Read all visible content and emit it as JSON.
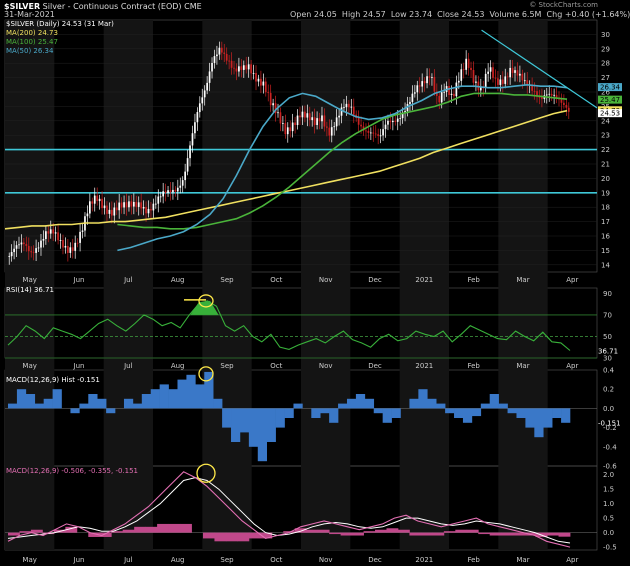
{
  "header": {
    "symbol": "$SILVER",
    "name": "Silver - Continuous Contract (EOD)",
    "exchange": "CME",
    "date": "31-Mar-2021",
    "open_label": "Open",
    "open": "24.05",
    "high_label": "High",
    "high": "24.57",
    "low_label": "Low",
    "low": "23.74",
    "close_label": "Close",
    "close": "24.53",
    "volume_label": "Volume",
    "volume": "6.5M",
    "chg_label": "Chg",
    "chg": "+0.40 (+1.64%)",
    "credit": "© StockCharts.com"
  },
  "colors": {
    "bg": "#000000",
    "up": "#ffffff",
    "down": "#cc2222",
    "ma200": "#f0e060",
    "ma100": "#4ab43a",
    "ma50": "#4aa8c8",
    "hline": "#3fc8d8",
    "rsi": "#38b03a",
    "macd_hist": "#3a78c8",
    "macd_line": "#e36fb3",
    "signal": "#ffffff",
    "histogram2": "#c0488a",
    "annot": "#ffe94a",
    "trend": "#3fc8d8"
  },
  "legend": {
    "price": "$SILVER (Daily) 24.53 (31 Mar)",
    "ma200": "MA(200) 24.73",
    "ma100": "MA(100) 25.47",
    "ma50": "MA(50) 26.34"
  },
  "panels": {
    "rsi_label": "RSI(14) 36.71",
    "macd_hist_label": "MACD(12,26,9) Hist -0.151",
    "macd_label_name": "MACD(12,26,9)",
    "macd_label_vals": "-0.506, -0.355, -0.151"
  },
  "chart_data": [
    {
      "type": "candlestick",
      "title": "$SILVER Silver - Continuous Contract (EOD) CME",
      "x_labels": [
        "May",
        "Jun",
        "Jul",
        "Aug",
        "Sep",
        "Oct",
        "Nov",
        "Dec",
        "2021",
        "Feb",
        "Mar",
        "Apr"
      ],
      "ylim": [
        13.5,
        31
      ],
      "y_ticks": [
        14,
        15,
        16,
        17,
        18,
        19,
        20,
        21,
        22,
        23,
        24,
        25,
        26,
        27,
        28,
        29,
        30
      ],
      "last_close": 24.53,
      "close_path": [
        14.6,
        15.0,
        15.3,
        15.0,
        15.6,
        16.2,
        16.0,
        15.4,
        15.2,
        15.6,
        16.4,
        17.8,
        18.5,
        18.2,
        17.9,
        18.1,
        17.8,
        18.0,
        18.4,
        18.0,
        18.2,
        18.6,
        18.9,
        19.4,
        20.3,
        22.6,
        24.5,
        26.0,
        28.5,
        29.4,
        28.2,
        27.1,
        27.5,
        28.0,
        27.2,
        26.5,
        24.9,
        24.2,
        23.5,
        24.0,
        24.4,
        24.0,
        23.7,
        24.5,
        23.4,
        24.0,
        24.7,
        24.8,
        24.1,
        23.6,
        23.1,
        22.5,
        23.8,
        24.2,
        24.7,
        25.2,
        25.9,
        26.5,
        27.5,
        25.6,
        26.3,
        25.2,
        27.0,
        28.5,
        27.0,
        26.0,
        27.4,
        26.5,
        27.0,
        27.9,
        27.2,
        26.3,
        26.0,
        25.8,
        26.2,
        25.7,
        24.9,
        24.5
      ],
      "overlays": [
        {
          "name": "MA(200)",
          "value": "24.73",
          "path": [
            16.5,
            16.6,
            16.7,
            16.7,
            16.8,
            16.8,
            16.9,
            16.9,
            17.0,
            17.0,
            17.1,
            17.2,
            17.3,
            17.5,
            17.7,
            17.9,
            18.1,
            18.3,
            18.5,
            18.7,
            18.9,
            19.1,
            19.3,
            19.5,
            19.7,
            19.9,
            20.1,
            20.3,
            20.5,
            20.8,
            21.1,
            21.4,
            21.8,
            22.1,
            22.4,
            22.7,
            23.0,
            23.3,
            23.6,
            23.9,
            24.2,
            24.5,
            24.7
          ]
        },
        {
          "name": "MA(100)",
          "value": "25.47",
          "path": [
            16.8,
            16.7,
            16.6,
            16.6,
            16.5,
            16.5,
            16.6,
            16.8,
            17.0,
            17.2,
            17.6,
            18.1,
            18.7,
            19.4,
            20.2,
            21.0,
            21.8,
            22.5,
            23.1,
            23.6,
            24.1,
            24.4,
            24.6,
            24.8,
            25.0,
            25.3,
            25.7,
            25.9,
            25.9,
            25.9,
            25.8,
            25.8,
            25.7,
            25.6,
            25.5
          ]
        },
        {
          "name": "MA(50)",
          "value": "26.34",
          "path": [
            15.0,
            15.2,
            15.5,
            15.8,
            16.0,
            16.3,
            16.8,
            17.5,
            18.6,
            20.2,
            22.0,
            23.6,
            24.8,
            25.6,
            25.9,
            25.7,
            25.2,
            24.7,
            24.3,
            24.1,
            24.2,
            24.5,
            25.0,
            25.4,
            25.9,
            26.2,
            26.4,
            26.4,
            26.3,
            26.3,
            26.4,
            26.5,
            26.4,
            26.4,
            26.3
          ]
        }
      ],
      "horizontal_lines": [
        22.0,
        19.0
      ],
      "trendline": {
        "from": 30.3,
        "to": 24.9
      }
    },
    {
      "type": "line",
      "name": "RSI(14)",
      "value": "36.71",
      "ylim": [
        30,
        95
      ],
      "y_ticks": [
        90,
        70,
        50,
        30
      ],
      "ref_lines": [
        70,
        50,
        30
      ],
      "path": [
        42,
        50,
        60,
        55,
        48,
        58,
        55,
        52,
        48,
        55,
        62,
        66,
        60,
        55,
        62,
        70,
        66,
        60,
        63,
        58,
        70,
        80,
        83,
        78,
        60,
        55,
        60,
        50,
        45,
        52,
        40,
        38,
        42,
        45,
        48,
        44,
        50,
        55,
        47,
        44,
        40,
        48,
        52,
        46,
        48,
        55,
        52,
        50,
        55,
        45,
        52,
        60,
        56,
        52,
        48,
        47,
        55,
        50,
        46,
        54,
        45,
        44,
        37
      ]
    },
    {
      "type": "bar",
      "name": "MACD(12,26,9) Hist",
      "value": "-0.151",
      "ylim": [
        -0.6,
        0.4
      ],
      "y_ticks": [
        0.4,
        0.2,
        0.0,
        -0.2,
        -0.4,
        -0.6
      ],
      "values": [
        0.05,
        0.2,
        0.15,
        0.05,
        0.1,
        0.2,
        0.0,
        -0.05,
        0.05,
        0.15,
        0.1,
        -0.05,
        0.0,
        0.1,
        0.05,
        0.15,
        0.2,
        0.25,
        0.2,
        0.3,
        0.35,
        0.25,
        0.38,
        0.1,
        -0.2,
        -0.35,
        -0.25,
        -0.4,
        -0.55,
        -0.35,
        -0.2,
        -0.1,
        0.05,
        0.0,
        -0.1,
        -0.05,
        -0.15,
        0.05,
        0.1,
        0.15,
        0.1,
        -0.05,
        -0.15,
        -0.1,
        0.0,
        0.1,
        0.2,
        0.1,
        0.05,
        -0.05,
        -0.1,
        -0.15,
        -0.08,
        0.05,
        0.15,
        0.05,
        -0.05,
        -0.1,
        -0.2,
        -0.3,
        -0.2,
        -0.1,
        -0.15
      ]
    },
    {
      "type": "line",
      "name": "MACD(12,26,9)",
      "values_label": "-0.506, -0.355, -0.151",
      "ylim": [
        -0.6,
        2.3
      ],
      "y_ticks": [
        2.0,
        1.5,
        1.0,
        0.5,
        0.0,
        -0.5
      ],
      "series": [
        {
          "name": "MACD",
          "values": [
            -0.3,
            -0.1,
            0.0,
            -0.1,
            0.1,
            0.3,
            0.2,
            0.0,
            -0.1,
            0.1,
            0.3,
            0.6,
            0.9,
            1.3,
            1.7,
            2.1,
            1.9,
            1.6,
            1.2,
            0.8,
            0.4,
            0.1,
            -0.2,
            -0.1,
            0.0,
            0.2,
            0.3,
            0.4,
            0.3,
            0.2,
            0.1,
            0.2,
            0.3,
            0.5,
            0.6,
            0.4,
            0.3,
            0.2,
            0.3,
            0.4,
            0.5,
            0.3,
            0.2,
            0.1,
            0.0,
            -0.1,
            -0.3,
            -0.4,
            -0.5
          ]
        },
        {
          "name": "Signal",
          "values": [
            -0.2,
            -0.15,
            -0.1,
            -0.05,
            0.0,
            0.1,
            0.2,
            0.15,
            0.05,
            0.05,
            0.2,
            0.4,
            0.7,
            1.0,
            1.4,
            1.8,
            1.9,
            1.8,
            1.5,
            1.1,
            0.7,
            0.3,
            0.0,
            -0.1,
            -0.05,
            0.05,
            0.2,
            0.3,
            0.35,
            0.3,
            0.2,
            0.15,
            0.2,
            0.35,
            0.5,
            0.5,
            0.4,
            0.3,
            0.25,
            0.3,
            0.4,
            0.35,
            0.3,
            0.2,
            0.1,
            0.0,
            -0.15,
            -0.3,
            -0.36
          ]
        }
      ]
    }
  ]
}
